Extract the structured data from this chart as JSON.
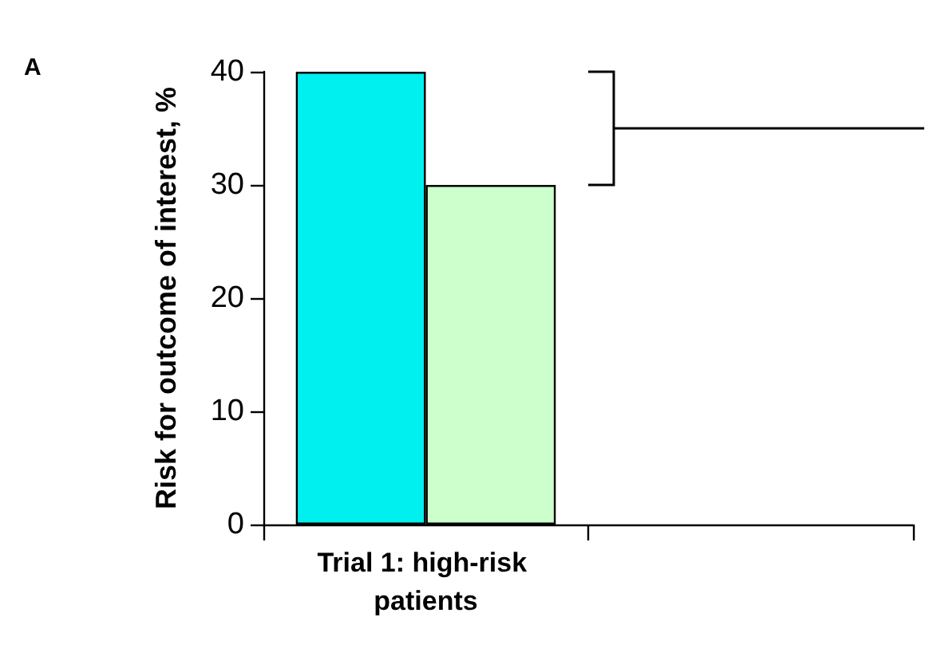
{
  "chart_data": {
    "type": "bar",
    "title": "A",
    "ylabel": "Risk for outcome of interest, %",
    "categories": [
      "Trial 1: high-risk patients",
      null
    ],
    "series": [
      {
        "color": "#00f0f0",
        "values": [
          40,
          null
        ]
      },
      {
        "color": "#ccffcc",
        "values": [
          30,
          null
        ]
      }
    ],
    "ylim": [
      0,
      40
    ],
    "yticks": [
      0,
      10,
      20,
      30,
      40
    ],
    "grid": false,
    "ref_lines": [
      {
        "axis": "y",
        "value": 35,
        "color": "#000000",
        "line_style": "solid"
      }
    ]
  }
}
